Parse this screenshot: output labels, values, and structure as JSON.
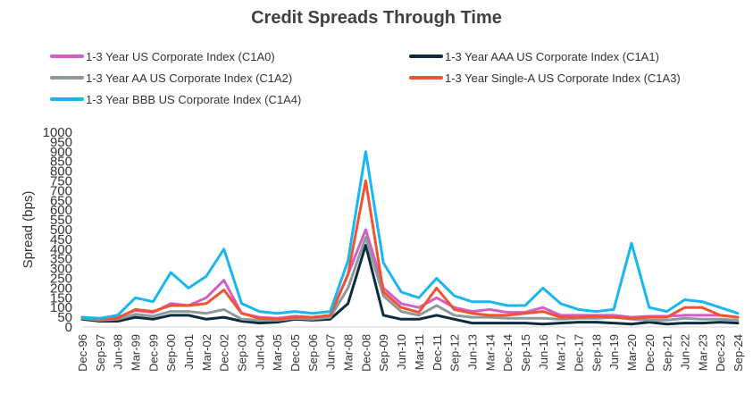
{
  "chart_data": {
    "type": "line",
    "title": "Credit Spreads Through Time",
    "xlabel": "",
    "ylabel": "Spread (bps)",
    "ylim": [
      0,
      1000
    ],
    "yticks": [
      0,
      50,
      100,
      150,
      200,
      250,
      300,
      350,
      400,
      450,
      500,
      550,
      600,
      650,
      700,
      750,
      800,
      850,
      900,
      950,
      1000
    ],
    "grid": false,
    "legend_position": "top",
    "x": [
      "Dec-96",
      "Sep-97",
      "Jun-98",
      "Mar-99",
      "Dec-99",
      "Sep-00",
      "Jun-01",
      "Mar-02",
      "Dec-02",
      "Sep-03",
      "Jun-04",
      "Mar-05",
      "Dec-05",
      "Sep-06",
      "Jun-07",
      "Mar-08",
      "Dec-08",
      "Sep-09",
      "Jun-10",
      "Mar-11",
      "Dec-11",
      "Sep-12",
      "Jun-13",
      "Mar-14",
      "Dec-14",
      "Sep-15",
      "Jun-16",
      "Mar-17",
      "Dec-17",
      "Sep-18",
      "Jun-19",
      "Mar-20",
      "Dec-20",
      "Sep-21",
      "Jun-22",
      "Mar-23",
      "Dec-23",
      "Sep-24"
    ],
    "series": [
      {
        "name": "1-3 Year US Corporate Index (C1A0)",
        "color": "#d35fc5",
        "values": [
          50,
          40,
          50,
          85,
          75,
          120,
          110,
          150,
          240,
          70,
          50,
          45,
          55,
          50,
          55,
          270,
          500,
          200,
          120,
          100,
          150,
          100,
          80,
          90,
          75,
          75,
          100,
          60,
          60,
          60,
          60,
          50,
          55,
          55,
          60,
          60,
          60,
          50
        ]
      },
      {
        "name": "1-3 Year AAA US Corporate Index (C1A1)",
        "color": "#0d2c3e",
        "values": [
          40,
          30,
          30,
          50,
          40,
          60,
          60,
          40,
          50,
          30,
          20,
          25,
          40,
          35,
          40,
          120,
          420,
          60,
          40,
          40,
          60,
          40,
          20,
          20,
          20,
          20,
          15,
          20,
          25,
          25,
          20,
          15,
          25,
          15,
          20,
          20,
          25,
          20
        ]
      },
      {
        "name": "1-3 Year AA US Corporate Index (C1A2)",
        "color": "#8c9a9c",
        "values": [
          45,
          35,
          40,
          65,
          55,
          80,
          80,
          70,
          90,
          40,
          35,
          35,
          45,
          40,
          50,
          200,
          460,
          160,
          80,
          60,
          110,
          60,
          50,
          50,
          45,
          45,
          45,
          40,
          45,
          45,
          50,
          40,
          35,
          35,
          45,
          40,
          40,
          35
        ]
      },
      {
        "name": "1-3 Year Single-A US Corporate Index (C1A3)",
        "color": "#ee5430",
        "values": [
          50,
          40,
          45,
          90,
          80,
          110,
          110,
          120,
          190,
          70,
          45,
          40,
          50,
          50,
          60,
          270,
          750,
          180,
          100,
          75,
          200,
          90,
          70,
          60,
          60,
          70,
          80,
          50,
          50,
          55,
          50,
          45,
          50,
          50,
          100,
          100,
          60,
          50
        ]
      },
      {
        "name": "1-3 Year BBB US Corporate Index (C1A4)",
        "color": "#19b6f0",
        "values": [
          50,
          45,
          60,
          150,
          130,
          280,
          200,
          260,
          400,
          120,
          80,
          70,
          80,
          70,
          80,
          340,
          900,
          330,
          180,
          150,
          250,
          160,
          130,
          130,
          110,
          110,
          200,
          120,
          90,
          80,
          90,
          430,
          100,
          80,
          140,
          130,
          100,
          70
        ]
      }
    ]
  }
}
